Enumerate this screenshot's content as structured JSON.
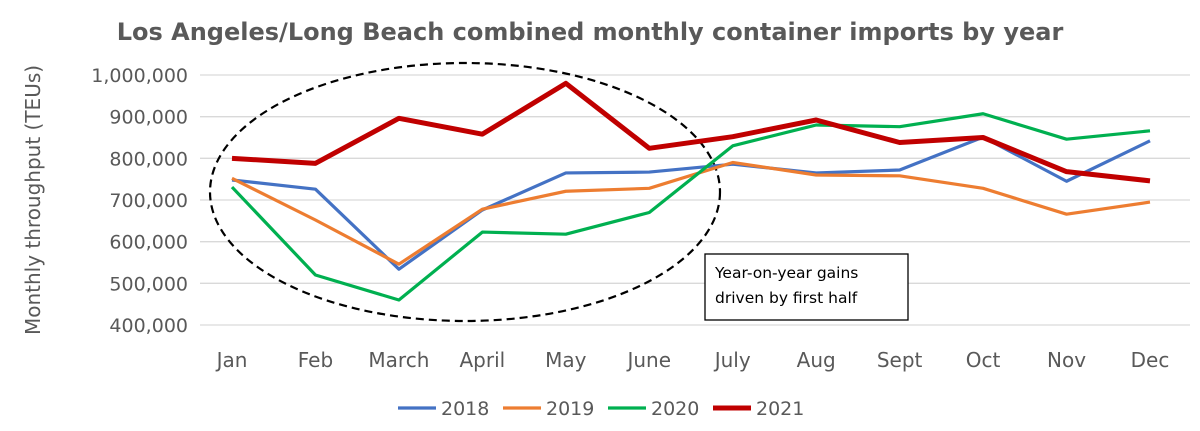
{
  "chart_data": {
    "type": "line",
    "title": "Los Angeles/Long Beach combined monthly container imports by year",
    "xlabel": "",
    "ylabel": "Monthly throughput (TEUs)",
    "ylim": [
      400000,
      1000000
    ],
    "yticks": [
      400000,
      500000,
      600000,
      700000,
      800000,
      900000,
      1000000
    ],
    "ytick_labels": [
      "400,000",
      "500,000",
      "600,000",
      "700,000",
      "800,000",
      "900,000",
      "1,000,000"
    ],
    "grid": true,
    "legend_position": "bottom",
    "categories": [
      "Jan",
      "Feb",
      "March",
      "April",
      "May",
      "June",
      "July",
      "Aug",
      "Sept",
      "Oct",
      "Nov",
      "Dec"
    ],
    "series": [
      {
        "name": "2018",
        "color": "#4472C4",
        "values": [
          748000,
          726000,
          534000,
          676000,
          765000,
          767000,
          786000,
          765000,
          772000,
          851000,
          745000,
          842000
        ]
      },
      {
        "name": "2019",
        "color": "#ED7D31",
        "values": [
          752000,
          652000,
          546000,
          678000,
          721000,
          728000,
          790000,
          760000,
          758000,
          728000,
          666000,
          695000
        ]
      },
      {
        "name": "2020",
        "color": "#00B050",
        "values": [
          731000,
          520000,
          460000,
          623000,
          618000,
          670000,
          830000,
          880000,
          876000,
          907000,
          846000,
          866000
        ]
      },
      {
        "name": "2021",
        "color": "#C00000",
        "values": [
          800000,
          788000,
          896000,
          858000,
          980000,
          824000,
          852000,
          892000,
          838000,
          850000,
          768000,
          746000
        ]
      }
    ],
    "annotations": [
      "Year-on-year gains driven by first half"
    ]
  }
}
